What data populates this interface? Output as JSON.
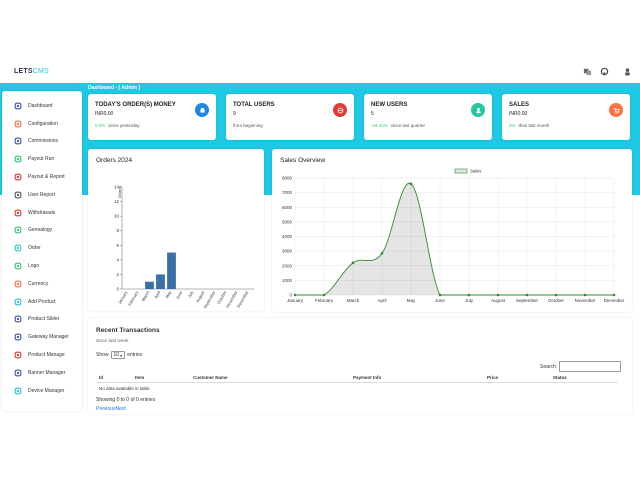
{
  "brand": {
    "part1": "LETS",
    "part2": "CMS"
  },
  "breadcrumb": "Dashboard - [ Admin ]",
  "sidebar": {
    "items": [
      {
        "label": "Dashboard",
        "icon": "monitor-icon",
        "color": "#3f51b5"
      },
      {
        "label": "Configuration",
        "icon": "gear-icon",
        "color": "#ff7043"
      },
      {
        "label": "Commissions",
        "icon": "money-icon",
        "color": "#3f51b5"
      },
      {
        "label": "Payout Run",
        "icon": "chart-icon",
        "color": "#2ecc71"
      },
      {
        "label": "Payout & Report",
        "icon": "pie-icon",
        "color": "#e53935"
      },
      {
        "label": "User Report",
        "icon": "document-icon",
        "color": "#555555"
      },
      {
        "label": "Withdrawals",
        "icon": "globe-icon",
        "color": "#e53935"
      },
      {
        "label": "Genealogy",
        "icon": "users-icon",
        "color": "#2ecc71"
      },
      {
        "label": "Order",
        "icon": "settings-icon",
        "color": "#26c6da"
      },
      {
        "label": "Logo",
        "icon": "image-icon",
        "color": "#2ecc71"
      },
      {
        "label": "Currency",
        "icon": "currency-icon",
        "color": "#ff7043"
      },
      {
        "label": "Add Product",
        "icon": "add-user-icon",
        "color": "#26c6da"
      },
      {
        "label": "Product Slider",
        "icon": "sliders-icon",
        "color": "#3f51b5"
      },
      {
        "label": "Gateway Manager",
        "icon": "card-icon",
        "color": "#3f51b5"
      },
      {
        "label": "Product Manage",
        "icon": "circle-icon",
        "color": "#e53935"
      },
      {
        "label": "Banner Manager",
        "icon": "banner-icon",
        "color": "#3f51b5"
      },
      {
        "label": "Device Manager",
        "icon": "list-icon",
        "color": "#26c6da"
      }
    ]
  },
  "stats": [
    {
      "title": "TODAY'S ORDER(S) MONEY",
      "value": "INR0.00",
      "pct": "0.0%",
      "foot": "since yesterday",
      "badge_color": "#1e88e5",
      "icon": "cart-icon"
    },
    {
      "title": "TOTAL USERS",
      "value": "9",
      "pct": "",
      "foot": "from beginning",
      "badge_color": "#e53935",
      "icon": "globe-icon"
    },
    {
      "title": "NEW USERS",
      "value": "5",
      "pct": "-44.44%",
      "foot": "since last quarter",
      "badge_color": "#26c6a0",
      "icon": "user-icon"
    },
    {
      "title": "SALES",
      "value": "INR0.00",
      "pct": "0%",
      "foot": "than last month",
      "badge_color": "#ff7043",
      "icon": "shopping-cart-icon"
    }
  ],
  "orders_title": "Orders 2024",
  "sales_title": "Sales Overview",
  "chart_data": [
    {
      "type": "bar",
      "title": "Orders 2024",
      "categories": [
        "January",
        "February",
        "March",
        "April",
        "May",
        "June",
        "July",
        "August",
        "September",
        "October",
        "November",
        "December"
      ],
      "values": [
        0,
        0,
        1,
        2,
        5,
        0,
        0,
        0,
        0,
        0,
        0,
        0
      ],
      "ylim": [
        0,
        14
      ],
      "yticks": [
        "0",
        "2",
        "4",
        "6",
        "8",
        "10",
        "12",
        "14"
      ],
      "legend_label": "Orders",
      "color": "#3d6fa7"
    },
    {
      "type": "area",
      "title": "Sales Overview",
      "categories": [
        "January",
        "February",
        "March",
        "April",
        "May",
        "June",
        "July",
        "August",
        "September",
        "October",
        "November",
        "December"
      ],
      "values": [
        0,
        0,
        2200,
        2850,
        7600,
        0,
        0,
        0,
        0,
        0,
        0,
        0
      ],
      "ylim": [
        0,
        8000
      ],
      "yticks": [
        "0",
        "1000",
        "2000",
        "3000",
        "4000",
        "5000",
        "6000",
        "7000",
        "8000"
      ],
      "series_name": "Sales",
      "legend": "top-center",
      "color": "#2e8b2e",
      "grid": true
    }
  ],
  "transactions": {
    "title": "Recent Transactions",
    "subtitle": "since last week",
    "show_label": "Show",
    "entries_value": "10",
    "entries_label": "entries",
    "search_label": "Search:",
    "search_value": "",
    "columns": [
      "Id",
      "Item",
      "Customer Name",
      "Payment Info",
      "Price",
      "Status"
    ],
    "empty": "No data available in table",
    "info": "Showing 0 to 0 of 0 entries",
    "prev": "Previous",
    "next": "Next"
  }
}
